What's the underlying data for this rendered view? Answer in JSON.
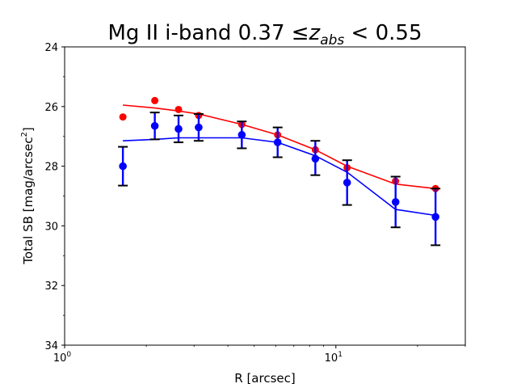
{
  "chart_data": {
    "type": "scatter",
    "title_main": "Mg II i-band 0.37 ",
    "title_le": "≤",
    "title_z": "z",
    "title_sub": "abs",
    "title_tail": " < 0.55",
    "xlabel": "R [arcsec]",
    "ylabel_main": "Total SB [mag/arcsec",
    "ylabel_sup": "2",
    "ylabel_end": "]",
    "xscale": "log",
    "xlim": [
      1,
      30
    ],
    "ylim": [
      34,
      24
    ],
    "y_inverted": true,
    "x_ticks": [
      {
        "value": 1,
        "base": "10",
        "exp": "0"
      },
      {
        "value": 10,
        "base": "10",
        "exp": "1"
      }
    ],
    "y_ticks": [
      {
        "value": 24,
        "label": "24"
      },
      {
        "value": 26,
        "label": "26"
      },
      {
        "value": 28,
        "label": "28"
      },
      {
        "value": 30,
        "label": "30"
      },
      {
        "value": 32,
        "label": "32"
      },
      {
        "value": 34,
        "label": "34"
      }
    ],
    "series": [
      {
        "name": "red points",
        "color": "#ff0000",
        "x": [
          1.64,
          2.15,
          2.63,
          3.12,
          4.5,
          6.1,
          8.4,
          11.0,
          16.6,
          23.3
        ],
        "y": [
          26.35,
          25.8,
          26.1,
          26.3,
          26.6,
          26.95,
          27.45,
          28.05,
          28.5,
          28.75
        ]
      },
      {
        "name": "red model line",
        "color": "#ff0000",
        "x": [
          1.64,
          2.15,
          2.63,
          3.12,
          4.5,
          6.1,
          8.4,
          11.0,
          16.6,
          23.3
        ],
        "y": [
          25.95,
          26.05,
          26.15,
          26.25,
          26.6,
          26.95,
          27.45,
          28.0,
          28.6,
          28.75
        ]
      },
      {
        "name": "blue points with error bars",
        "color": "#0000ff",
        "x": [
          1.64,
          2.15,
          2.63,
          3.12,
          4.5,
          6.1,
          8.4,
          11.0,
          16.6,
          23.3
        ],
        "y": [
          28.0,
          26.65,
          26.75,
          26.7,
          26.95,
          27.2,
          27.75,
          28.55,
          29.2,
          29.7
        ],
        "yerr_low": [
          27.35,
          26.2,
          26.3,
          26.25,
          26.5,
          26.7,
          27.15,
          27.8,
          28.35,
          28.75
        ],
        "yerr_high": [
          28.65,
          27.1,
          27.2,
          27.15,
          27.4,
          27.7,
          28.3,
          29.3,
          30.05,
          30.65
        ]
      },
      {
        "name": "blue model line",
        "color": "#0000ff",
        "x": [
          1.64,
          2.15,
          2.63,
          3.12,
          4.5,
          6.1,
          8.4,
          11.0,
          16.6,
          23.3
        ],
        "y": [
          27.15,
          27.1,
          27.05,
          27.05,
          27.05,
          27.2,
          27.65,
          28.2,
          29.45,
          29.65
        ]
      }
    ]
  }
}
